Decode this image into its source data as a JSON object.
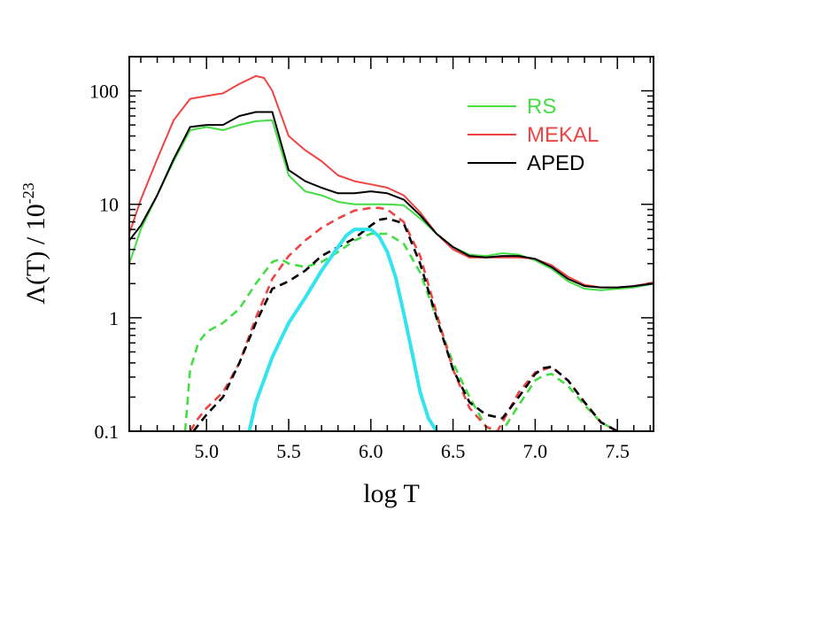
{
  "chart_data": {
    "type": "line",
    "title": "",
    "xlabel": "log T",
    "ylabel": "Λ(T) / 10",
    "ylabel_exponent": "-23",
    "xlim": [
      4.53,
      7.72
    ],
    "ylim": [
      0.1,
      200
    ],
    "y_scale": "log",
    "grid": false,
    "legend_position": "top-right",
    "x_ticks": [
      5.0,
      5.5,
      6.0,
      6.5,
      7.0,
      7.5
    ],
    "x_tick_labels": [
      "5.0",
      "5.5",
      "6.0",
      "6.5",
      "7.0",
      "7.5"
    ],
    "y_ticks": [
      0.1,
      1,
      10,
      100
    ],
    "y_tick_labels": [
      "0.1",
      "1",
      "10",
      "100"
    ],
    "legend": [
      {
        "name": "RS",
        "color": "#44dd44"
      },
      {
        "name": "MEKAL",
        "color": "#ee4444"
      },
      {
        "name": "APED",
        "color": "#000000"
      }
    ],
    "series": [
      {
        "name": "RS",
        "style": "solid",
        "color": "#44dd44",
        "x": [
          4.53,
          4.6,
          4.7,
          4.8,
          4.9,
          5.0,
          5.1,
          5.2,
          5.3,
          5.4,
          5.5,
          5.6,
          5.7,
          5.8,
          5.9,
          6.0,
          6.1,
          6.2,
          6.3,
          6.4,
          6.5,
          6.6,
          6.7,
          6.8,
          6.9,
          7.0,
          7.1,
          7.2,
          7.3,
          7.4,
          7.5,
          7.6,
          7.72
        ],
        "y": [
          3.0,
          6.0,
          12,
          24,
          45,
          48,
          45,
          50,
          54,
          55,
          18,
          13,
          12,
          10.5,
          10,
          10,
          10,
          9.8,
          7.5,
          5.5,
          4.2,
          3.6,
          3.5,
          3.7,
          3.6,
          3.2,
          2.7,
          2.1,
          1.8,
          1.75,
          1.8,
          1.85,
          2.0
        ]
      },
      {
        "name": "MEKAL",
        "style": "solid",
        "color": "#ee4444",
        "x": [
          4.53,
          4.6,
          4.7,
          4.8,
          4.9,
          5.0,
          5.1,
          5.2,
          5.3,
          5.35,
          5.4,
          5.5,
          5.6,
          5.7,
          5.8,
          5.9,
          6.0,
          6.1,
          6.2,
          6.3,
          6.4,
          6.5,
          6.6,
          6.7,
          6.8,
          6.9,
          7.0,
          7.1,
          7.2,
          7.3,
          7.4,
          7.5,
          7.6,
          7.72
        ],
        "y": [
          5.5,
          11,
          25,
          55,
          85,
          90,
          95,
          115,
          135,
          130,
          100,
          40,
          30,
          24,
          18,
          16,
          15,
          14,
          12,
          8.5,
          5.5,
          4.0,
          3.4,
          3.4,
          3.4,
          3.4,
          3.3,
          2.9,
          2.3,
          1.95,
          1.85,
          1.85,
          1.9,
          2.05
        ]
      },
      {
        "name": "APED",
        "style": "solid",
        "color": "#000000",
        "x": [
          4.53,
          4.6,
          4.7,
          4.8,
          4.9,
          5.0,
          5.1,
          5.2,
          5.3,
          5.4,
          5.5,
          5.6,
          5.7,
          5.8,
          5.9,
          6.0,
          6.1,
          6.2,
          6.3,
          6.4,
          6.5,
          6.6,
          6.7,
          6.8,
          6.9,
          7.0,
          7.1,
          7.2,
          7.3,
          7.4,
          7.5,
          7.6,
          7.72
        ],
        "y": [
          4.8,
          6.5,
          12,
          25,
          48,
          50,
          50,
          60,
          65,
          65,
          20,
          16,
          14,
          12.5,
          12.5,
          13,
          12.5,
          11,
          8.0,
          5.5,
          4.2,
          3.5,
          3.4,
          3.5,
          3.5,
          3.3,
          2.8,
          2.2,
          1.9,
          1.85,
          1.85,
          1.9,
          2.0
        ]
      },
      {
        "name": "RS",
        "style": "dashed",
        "color": "#44dd44",
        "x": [
          4.87,
          4.9,
          4.95,
          5.0,
          5.1,
          5.2,
          5.3,
          5.4,
          5.45,
          5.5,
          5.6,
          5.7,
          5.8,
          5.9,
          6.0,
          6.1,
          6.2,
          6.3,
          6.4,
          6.5,
          6.6,
          6.7,
          6.75,
          6.8,
          6.9,
          7.0,
          7.05,
          7.1,
          7.2,
          7.3,
          7.4,
          7.5
        ],
        "y": [
          0.1,
          0.35,
          0.6,
          0.75,
          0.9,
          1.2,
          2.0,
          3.1,
          3.3,
          3.0,
          2.8,
          3.1,
          3.8,
          4.8,
          5.5,
          5.5,
          4.5,
          2.5,
          1.0,
          0.4,
          0.2,
          0.11,
          0.1,
          0.1,
          0.17,
          0.28,
          0.31,
          0.32,
          0.25,
          0.17,
          0.12,
          0.1
        ]
      },
      {
        "name": "MEKAL",
        "style": "dashed",
        "color": "#ee4444",
        "x": [
          4.9,
          4.95,
          5.0,
          5.1,
          5.2,
          5.3,
          5.4,
          5.5,
          5.6,
          5.7,
          5.8,
          5.9,
          6.0,
          6.05,
          6.1,
          6.2,
          6.3,
          6.4,
          6.5,
          6.6,
          6.7,
          6.77,
          6.8,
          6.9,
          7.0,
          7.1,
          7.2,
          7.3,
          7.4,
          7.5
        ],
        "y": [
          0.1,
          0.13,
          0.16,
          0.22,
          0.4,
          1.0,
          2.2,
          3.5,
          4.8,
          6.2,
          7.5,
          8.8,
          9.3,
          9.3,
          9.0,
          7.0,
          3.5,
          1.1,
          0.35,
          0.16,
          0.11,
          0.1,
          0.12,
          0.22,
          0.33,
          0.37,
          0.28,
          0.18,
          0.12,
          0.1
        ]
      },
      {
        "name": "APED",
        "style": "dashed",
        "color": "#000000",
        "x": [
          4.92,
          5.0,
          5.1,
          5.2,
          5.3,
          5.4,
          5.5,
          5.6,
          5.7,
          5.8,
          5.9,
          6.0,
          6.05,
          6.1,
          6.2,
          6.3,
          6.4,
          6.5,
          6.6,
          6.7,
          6.8,
          6.9,
          7.0,
          7.05,
          7.1,
          7.2,
          7.3,
          7.4,
          7.5
        ],
        "y": [
          0.1,
          0.14,
          0.2,
          0.4,
          0.9,
          1.8,
          2.1,
          2.6,
          3.5,
          4.2,
          5.0,
          6.5,
          7.3,
          7.5,
          6.8,
          3.0,
          1.0,
          0.35,
          0.18,
          0.14,
          0.13,
          0.2,
          0.32,
          0.36,
          0.37,
          0.28,
          0.18,
          0.12,
          0.1
        ]
      },
      {
        "name": "",
        "style": "thick",
        "color": "#33e4ee",
        "x": [
          5.26,
          5.3,
          5.4,
          5.5,
          5.6,
          5.7,
          5.8,
          5.85,
          5.9,
          5.95,
          6.0,
          6.05,
          6.1,
          6.15,
          6.2,
          6.25,
          6.3,
          6.35,
          6.4
        ],
        "y": [
          0.1,
          0.18,
          0.45,
          0.9,
          1.5,
          2.6,
          4.2,
          5.3,
          6.0,
          6.0,
          6.0,
          5.2,
          3.8,
          2.3,
          1.1,
          0.5,
          0.22,
          0.13,
          0.1
        ]
      }
    ]
  }
}
